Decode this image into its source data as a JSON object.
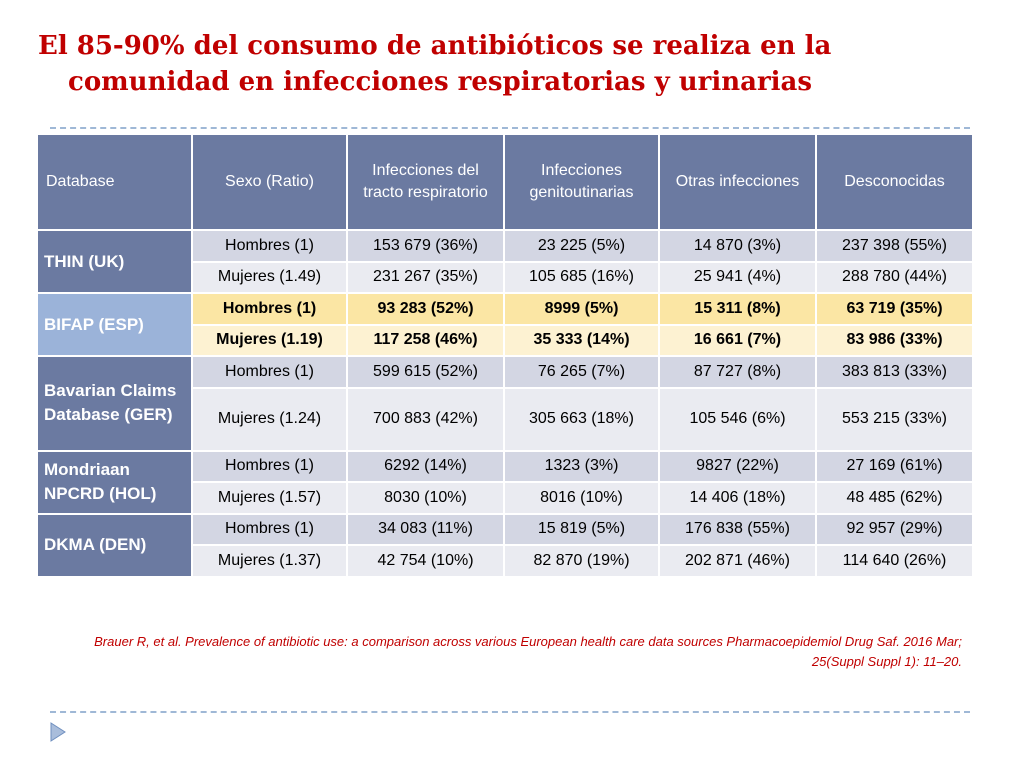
{
  "title": {
    "line1": "El 85-90% del consumo de antibióticos se realiza en la",
    "line2": "comunidad en infecciones respiratorias y urinarias"
  },
  "table": {
    "headers": [
      "Database",
      "Sexo (Ratio)",
      "Infecciones del tracto respiratorio",
      "Infecciones genitoutinarias",
      "Otras infecciones",
      "Desconocidas"
    ],
    "groups": [
      {
        "database": "THIN (UK)",
        "rows": [
          [
            "Hombres (1)",
            "153 679 (36%)",
            "23 225 (5%)",
            "14 870 (3%)",
            "237 398 (55%)"
          ],
          [
            "Mujeres (1.49)",
            "231 267 (35%)",
            "105 685 (16%)",
            "25 941 (4%)",
            "288 780 (44%)"
          ]
        ]
      },
      {
        "database": "BIFAP (ESP)",
        "rows": [
          [
            "Hombres (1)",
            "93 283 (52%)",
            "8999 (5%)",
            "15 311 (8%)",
            "63 719 (35%)"
          ],
          [
            "Mujeres (1.19)",
            "117 258 (46%)",
            "35 333 (14%)",
            "16 661 (7%)",
            "83 986 (33%)"
          ]
        ]
      },
      {
        "database": "Bavarian Claims Database (GER)",
        "rows": [
          [
            "Hombres (1)",
            "599 615 (52%)",
            "76 265 (7%)",
            "87 727 (8%)",
            "383 813 (33%)"
          ],
          [
            "Mujeres (1.24)",
            "700 883 (42%)",
            "305 663 (18%)",
            "105 546 (6%)",
            "553 215 (33%)"
          ]
        ]
      },
      {
        "database": "Mondriaan NPCRD (HOL)",
        "rows": [
          [
            "Hombres (1)",
            "6292 (14%)",
            "1323 (3%)",
            "9827 (22%)",
            "27 169 (61%)"
          ],
          [
            "Mujeres (1.57)",
            "8030 (10%)",
            "8016 (10%)",
            "14 406 (18%)",
            "48 485 (62%)"
          ]
        ]
      },
      {
        "database": "DKMA (DEN)",
        "rows": [
          [
            "Hombres (1)",
            "34 083 (11%)",
            "15 819 (5%)",
            "176 838 (55%)",
            "92 957 (29%)"
          ],
          [
            "Mujeres (1.37)",
            "42 754 (10%)",
            "82 870 (19%)",
            "202 871 (46%)",
            "114 640 (26%)"
          ]
        ]
      }
    ]
  },
  "reference": {
    "line1": "Brauer R, et al. Prevalence of antibiotic use: a comparison across various European health care data sources Pharmacoepidemiol Drug Saf. 2016 Mar;",
    "line2": "25(Suppl Suppl 1): 11–20."
  },
  "colors": {
    "title": "#c00000",
    "header": "#6b7aa1",
    "highlight": "#fbe6a4"
  }
}
